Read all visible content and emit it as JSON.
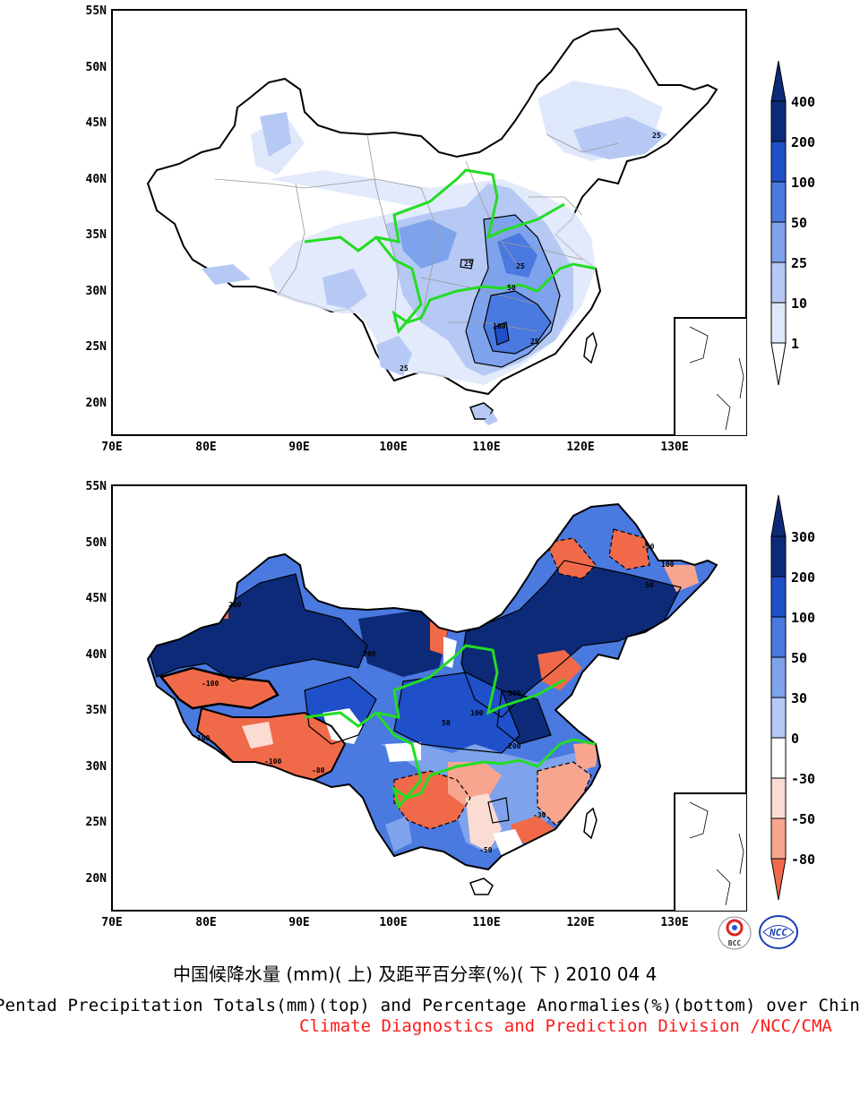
{
  "colors": {
    "cb_top": [
      "#ffffff",
      "#dfe8fb",
      "#b6c9f5",
      "#7ea3ec",
      "#4a79e0",
      "#1f4fc9",
      "#0c2a78"
    ],
    "cb_bottom": [
      "#f06a4a",
      "#f7a58f",
      "#fbdcd3",
      "#ffffff",
      "#b6c9f5",
      "#7ea3ec",
      "#4a79e0",
      "#1f4fc9",
      "#0c2a78"
    ],
    "river": "#22dd22",
    "credit": "#ff1a1a"
  },
  "maps": [
    {
      "id": "top",
      "lat_ticks": [
        "55N",
        "50N",
        "45N",
        "40N",
        "35N",
        "30N",
        "25N",
        "20N"
      ],
      "lon_ticks": [
        "70E",
        "80E",
        "90E",
        "100E",
        "110E",
        "120E",
        "130E"
      ],
      "colorbar_labels": [
        "400",
        "200",
        "100",
        "50",
        "25",
        "10",
        "1"
      ],
      "contour_labels": [
        "25",
        "25",
        "50",
        "100",
        "25",
        "25",
        "25"
      ]
    },
    {
      "id": "bottom",
      "lat_ticks": [
        "55N",
        "50N",
        "45N",
        "40N",
        "35N",
        "30N",
        "25N",
        "20N"
      ],
      "lon_ticks": [
        "70E",
        "80E",
        "90E",
        "100E",
        "110E",
        "120E",
        "130E"
      ],
      "colorbar_labels": [
        "300",
        "200",
        "100",
        "50",
        "30",
        "0",
        "-30",
        "-50",
        "-80"
      ],
      "contour_labels": [
        "200",
        "-100",
        "100",
        "50",
        "100",
        "300",
        "200",
        "-30",
        "-50",
        "-80",
        "200",
        "100",
        "-50",
        "-100",
        "50"
      ]
    }
  ],
  "logos": [
    "BCC",
    "NCC"
  ],
  "captions": {
    "cn": "中国候降水量 (mm)( 上) 及距平百分率(%)( 下 ) 2010 04 4",
    "en": "Pentad Precipitation Totals(mm)(top) and Percentage Anormalies(%)(bottom) over China",
    "credit": "Climate Diagnostics and Prediction Division /NCC/CMA"
  }
}
